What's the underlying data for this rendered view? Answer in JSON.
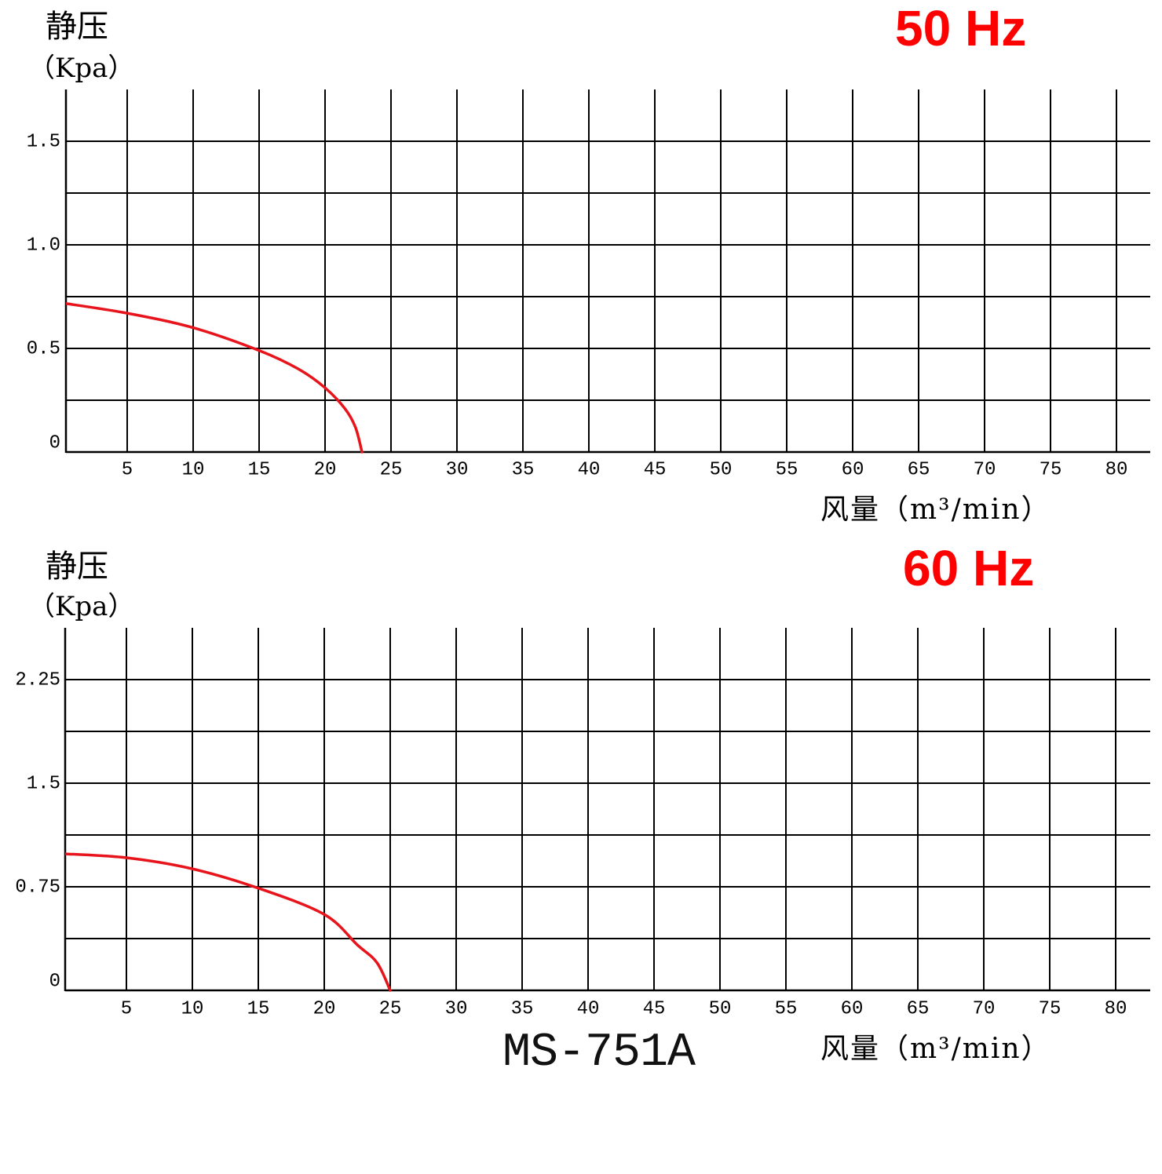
{
  "chart_data": [
    {
      "type": "line",
      "title": "50 Hz",
      "ylabel": "静压",
      "ylabel_unit": "（Kpa）",
      "xlabel": "风量（m³/min）",
      "xlim": [
        0,
        82.5
      ],
      "ylim": [
        0,
        1.75
      ],
      "x_ticks": [
        5,
        10,
        15,
        20,
        25,
        30,
        35,
        40,
        45,
        50,
        55,
        60,
        65,
        70,
        75,
        80
      ],
      "x_tick_labels": [
        "5",
        "10",
        "15",
        "20",
        "25",
        "30",
        "35",
        "40",
        "45",
        "50",
        "55",
        "60",
        "65",
        "70",
        "75",
        "80"
      ],
      "y_ticks": [
        0,
        0.5,
        1.0,
        1.5
      ],
      "y_tick_labels": [
        "0",
        "0.5",
        "1.0",
        "1.5"
      ],
      "grid": true,
      "series": [
        {
          "color": "#e8141c",
          "x": [
            0,
            5,
            10,
            15,
            18,
            20,
            21.5,
            22.3,
            22.8
          ],
          "y": [
            0.72,
            0.67,
            0.6,
            0.49,
            0.4,
            0.31,
            0.21,
            0.12,
            0
          ]
        }
      ]
    },
    {
      "type": "line",
      "title": "60 Hz",
      "ylabel": "静压",
      "ylabel_unit": "（Kpa）",
      "xlabel": "风量（m³/min）",
      "xlim": [
        0,
        82.5
      ],
      "ylim": [
        0,
        2.625
      ],
      "x_ticks": [
        5,
        10,
        15,
        20,
        25,
        30,
        35,
        40,
        45,
        50,
        55,
        60,
        65,
        70,
        75,
        80
      ],
      "x_tick_labels": [
        "5",
        "10",
        "15",
        "20",
        "25",
        "30",
        "35",
        "40",
        "45",
        "50",
        "55",
        "60",
        "65",
        "70",
        "75",
        "80"
      ],
      "y_ticks": [
        0,
        0.75,
        1.5,
        2.25
      ],
      "y_tick_labels": [
        "0",
        "0.75",
        "1.5",
        "2.25"
      ],
      "grid": true,
      "series": [
        {
          "color": "#e8141c",
          "x": [
            0,
            5,
            10,
            15,
            20,
            22.5,
            24,
            25
          ],
          "y": [
            0.99,
            0.96,
            0.88,
            0.74,
            0.55,
            0.33,
            0.2,
            0
          ]
        }
      ]
    }
  ],
  "model": "MS-751A",
  "colors": {
    "title": "#ff0000",
    "grid": "#000000",
    "curve": "#e8141c"
  }
}
